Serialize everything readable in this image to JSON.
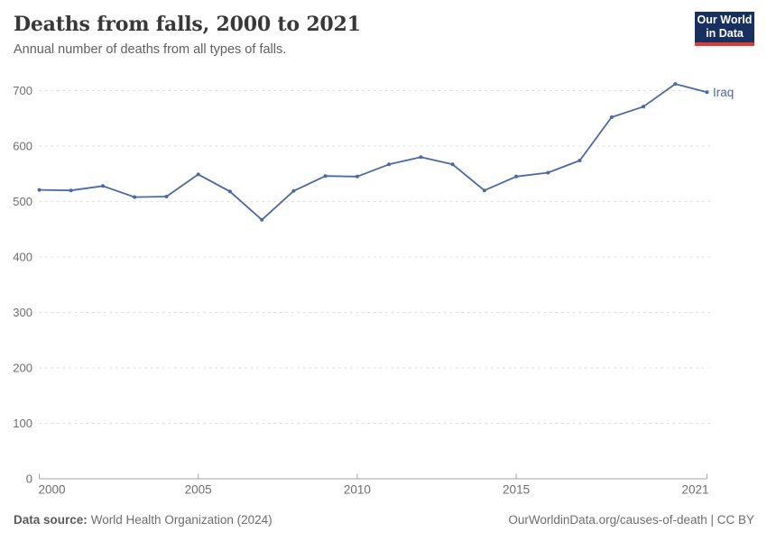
{
  "header": {
    "title": "Deaths from falls, 2000 to 2021",
    "subtitle": "Annual number of deaths from all types of falls.",
    "logo": {
      "line1": "Our World",
      "line2": "in Data"
    }
  },
  "chart_data": {
    "type": "line",
    "title": "Deaths from falls, 2000 to 2021",
    "xlabel": "",
    "ylabel": "",
    "xlim": [
      2000,
      2021
    ],
    "ylim": [
      0,
      700
    ],
    "yticks": [
      0,
      100,
      200,
      300,
      400,
      500,
      600,
      700
    ],
    "xticks": [
      2000,
      2005,
      2010,
      2015,
      2021
    ],
    "grid": "horizontal-dashed",
    "legend_position": "end-of-line-label",
    "series": [
      {
        "name": "Iraq",
        "color": "#4a69a5",
        "x": [
          2000,
          2001,
          2002,
          2003,
          2004,
          2005,
          2006,
          2007,
          2008,
          2009,
          2010,
          2011,
          2012,
          2013,
          2014,
          2015,
          2016,
          2017,
          2018,
          2019,
          2020,
          2021
        ],
        "values": [
          521,
          520,
          528,
          508,
          509,
          549,
          518,
          467,
          519,
          546,
          545,
          567,
          580,
          567,
          520,
          545,
          552,
          574,
          652,
          671,
          712,
          697
        ]
      }
    ]
  },
  "footer": {
    "source_label": "Data source:",
    "source_value": "World Health Organization (2024)",
    "credit": "OurWorldinData.org/causes-of-death | CC BY"
  },
  "colors": {
    "line": "#4a69a5",
    "grid": "#dcdcdc",
    "axis": "#a3a3a3",
    "tick_label": "#6e6e6e",
    "title": "#383838",
    "logo_bg": "#18305f",
    "logo_accent": "#dc3d33"
  }
}
